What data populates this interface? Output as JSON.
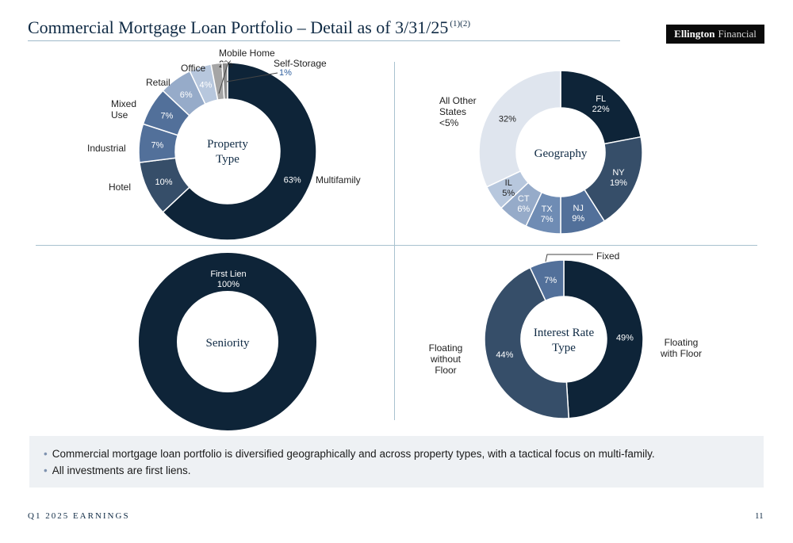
{
  "header": {
    "title": "Commercial Mortgage Loan Portfolio – Detail as of 3/31/25",
    "footnote_refs": "(1)(2)",
    "logo_primary": "Ellington",
    "logo_secondary": "Financial"
  },
  "colors": {
    "navy": "#0e2438",
    "slate": "#364e69",
    "steel": "#52709a",
    "blue_mid": "#6f8cb4",
    "blue_light": "#96abc9",
    "blue_pale": "#b7c7dd",
    "gray": "#a5a5a5",
    "very_light": "#dfe5ee"
  },
  "chart_data": [
    {
      "type": "pie",
      "title": "Property Type",
      "categories": [
        "Multifamily",
        "Hotel",
        "Industrial",
        "Mixed Use",
        "Retail",
        "Office",
        "Mobile Home",
        "Self-Storage"
      ],
      "values": [
        63,
        10,
        7,
        7,
        6,
        4,
        2,
        1
      ],
      "value_labels": [
        "63%",
        "10%",
        "7%",
        "7%",
        "6%",
        "4%",
        "2%",
        "1%"
      ]
    },
    {
      "type": "pie",
      "title": "Geography",
      "categories": [
        "FL",
        "NY",
        "NJ",
        "TX",
        "CT",
        "IL",
        "All Other States <5%"
      ],
      "values": [
        22,
        19,
        9,
        7,
        6,
        5,
        32
      ],
      "value_labels": [
        "22%",
        "19%",
        "9%",
        "7%",
        "6%",
        "5%",
        "32%"
      ]
    },
    {
      "type": "pie",
      "title": "Seniority",
      "categories": [
        "First Lien"
      ],
      "values": [
        100
      ],
      "value_labels": [
        "100%"
      ]
    },
    {
      "type": "pie",
      "title": "Interest Rate Type",
      "categories": [
        "Floating with Floor",
        "Floating without Floor",
        "Fixed"
      ],
      "values": [
        49,
        44,
        7
      ],
      "value_labels": [
        "49%",
        "44%",
        "7%"
      ]
    }
  ],
  "notes": [
    "Commercial mortgage loan portfolio is diversified geographically and across property types, with a tactical focus on multi-family.",
    "All investments are first liens."
  ],
  "footer": {
    "left": "Q1 2025 EARNINGS",
    "page_number": "11"
  }
}
